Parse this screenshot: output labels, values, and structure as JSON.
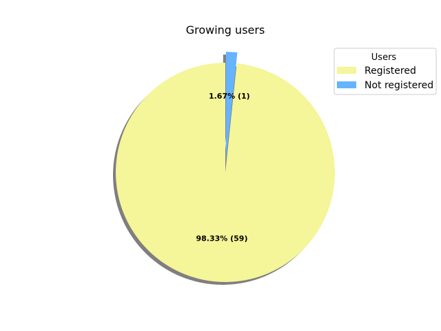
{
  "chart_data": {
    "type": "pie",
    "title": "Growing users",
    "legend": {
      "title": "Users",
      "placement": "top-right"
    },
    "slices": [
      {
        "label": "Registered",
        "value": 59,
        "percent_label": "98.33%  (59)",
        "color": "#f5f599",
        "explode": 0
      },
      {
        "label": "Not registered",
        "value": 1,
        "percent_label": "1.67%  (1)",
        "color": "#66b3ff",
        "explode": 0.1
      }
    ],
    "shadow": true,
    "start_angle_deg": 90
  }
}
